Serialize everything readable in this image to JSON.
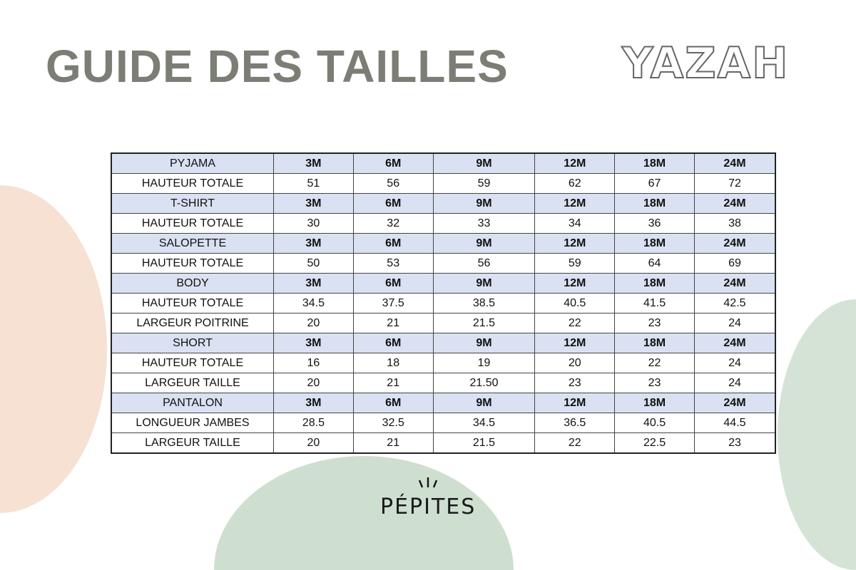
{
  "title": "GUIDE DES TAILLES",
  "brand_logo": "YAZAH",
  "footer_logo": "PÉPITES",
  "colors": {
    "title": "#7b7e74",
    "header_row": "#d9e1f2",
    "peach_blob": "#f4dccb",
    "green_blob": "#c9dccb"
  },
  "rows": [
    {
      "type": "header",
      "cells": [
        "PYJAMA",
        "3M",
        "6M",
        "9M",
        "12M",
        "18M",
        "24M"
      ]
    },
    {
      "type": "data",
      "cells": [
        "HAUTEUR TOTALE",
        "51",
        "56",
        "59",
        "62",
        "67",
        "72"
      ]
    },
    {
      "type": "header",
      "cells": [
        "T-SHIRT",
        "3M",
        "6M",
        "9M",
        "12M",
        "18M",
        "24M"
      ]
    },
    {
      "type": "data",
      "cells": [
        "HAUTEUR TOTALE",
        "30",
        "32",
        "33",
        "34",
        "36",
        "38"
      ]
    },
    {
      "type": "header",
      "cells": [
        "SALOPETTE",
        "3M",
        "6M",
        "9M",
        "12M",
        "18M",
        "24M"
      ]
    },
    {
      "type": "data",
      "cells": [
        "HAUTEUR TOTALE",
        "50",
        "53",
        "56",
        "59",
        "64",
        "69"
      ]
    },
    {
      "type": "header",
      "cells": [
        "BODY",
        "3M",
        "6M",
        "9M",
        "12M",
        "18M",
        "24M"
      ]
    },
    {
      "type": "data",
      "cells": [
        "HAUTEUR TOTALE",
        "34.5",
        "37.5",
        "38.5",
        "40.5",
        "41.5",
        "42.5"
      ]
    },
    {
      "type": "data",
      "cells": [
        "LARGEUR POITRINE",
        "20",
        "21",
        "21.5",
        "22",
        "23",
        "24"
      ]
    },
    {
      "type": "header",
      "cells": [
        "SHORT",
        "3M",
        "6M",
        "9M",
        "12M",
        "18M",
        "24M"
      ]
    },
    {
      "type": "data",
      "cells": [
        "HAUTEUR TOTALE",
        "16",
        "18",
        "19",
        "20",
        "22",
        "24"
      ]
    },
    {
      "type": "data",
      "cells": [
        "LARGEUR TAILLE",
        "20",
        "21",
        "21.50",
        "23",
        "23",
        "24"
      ]
    },
    {
      "type": "header",
      "cells": [
        "PANTALON",
        "3M",
        "6M",
        "9M",
        "12M",
        "18M",
        "24M"
      ]
    },
    {
      "type": "data",
      "cells": [
        "LONGUEUR JAMBES",
        "28.5",
        "32.5",
        "34.5",
        "36.5",
        "40.5",
        "44.5"
      ]
    },
    {
      "type": "data",
      "cells": [
        "LARGEUR TAILLE",
        "20",
        "21",
        "21.5",
        "22",
        "22.5",
        "23"
      ]
    }
  ]
}
